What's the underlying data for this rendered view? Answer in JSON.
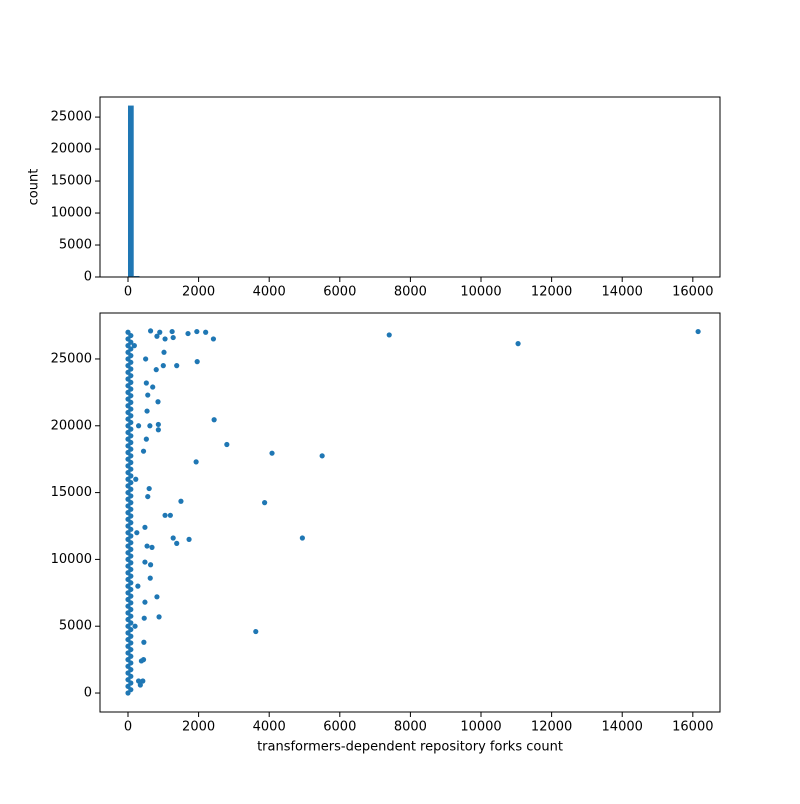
{
  "chart_data": [
    {
      "type": "histogram",
      "y_label": "count",
      "color": "#1f77b4",
      "bins": [
        0,
        162,
        324,
        486,
        648,
        810,
        972,
        1134,
        1296,
        1458,
        1620,
        1782,
        1944,
        2106,
        2268,
        2430,
        2592,
        2754,
        2916,
        3078,
        3240,
        3402,
        3564,
        3726,
        3888,
        4050,
        4212,
        4374,
        4536,
        4698,
        4860,
        5022,
        5184,
        5346,
        5508,
        5670,
        5832,
        5994,
        6156,
        6318,
        6480,
        6642,
        6804,
        6966,
        7128,
        7290,
        7452,
        7614,
        7776,
        7938,
        8100,
        8262,
        8424,
        8586,
        8748,
        8910,
        9072,
        9234,
        9396,
        9558,
        9720,
        9882,
        10044,
        10206,
        10368,
        10530,
        10692,
        10854,
        11016,
        11178,
        11340,
        11502,
        11664,
        11826,
        11988,
        12150,
        12312,
        12474,
        12636,
        12798,
        12960,
        13122,
        13284,
        13446,
        13608,
        13770,
        13932,
        14094,
        14256,
        14418,
        14580,
        14742,
        14904,
        15066,
        15228,
        15390,
        15552,
        15714,
        15876,
        16038,
        16200
      ],
      "counts": [
        26800,
        150,
        60,
        35,
        20,
        14,
        10,
        7,
        5,
        4,
        3,
        3,
        2,
        2,
        2,
        1,
        1,
        1,
        1,
        0,
        0,
        0,
        1,
        1,
        0,
        1,
        0,
        0,
        0,
        0,
        1,
        0,
        0,
        1,
        0,
        0,
        0,
        0,
        0,
        0,
        0,
        0,
        0,
        0,
        0,
        1,
        0,
        0,
        0,
        0,
        0,
        0,
        0,
        0,
        0,
        0,
        0,
        0,
        0,
        0,
        0,
        0,
        0,
        0,
        0,
        0,
        0,
        0,
        1,
        0,
        0,
        0,
        0,
        0,
        0,
        0,
        0,
        0,
        0,
        0,
        0,
        0,
        0,
        0,
        0,
        0,
        0,
        0,
        0,
        0,
        0,
        0,
        0,
        0,
        0,
        0,
        0,
        0,
        0,
        1
      ],
      "xlim": [
        -793,
        16770
      ],
      "xticks": [
        0,
        2000,
        4000,
        6000,
        8000,
        10000,
        12000,
        14000,
        16000
      ],
      "ylim": [
        0,
        28140
      ],
      "yticks": [
        0,
        5000,
        10000,
        15000,
        20000,
        25000
      ]
    },
    {
      "type": "scatter",
      "x_label": "transformers-dependent repository forks count",
      "color": "#1f77b4",
      "x": [
        0,
        80,
        0,
        80,
        0,
        80,
        0,
        80,
        0,
        80,
        0,
        80,
        0,
        80,
        0,
        80,
        0,
        80,
        0,
        80,
        0,
        80,
        0,
        80,
        0,
        80,
        0,
        80,
        0,
        80,
        0,
        80,
        0,
        80,
        0,
        80,
        0,
        80,
        0,
        80,
        0,
        80,
        0,
        80,
        0,
        80,
        0,
        80,
        0,
        80,
        0,
        80,
        0,
        80,
        0,
        80,
        0,
        80,
        0,
        80,
        0,
        80,
        0,
        80,
        0,
        80,
        0,
        80,
        0,
        80,
        0,
        80,
        0,
        80,
        0,
        80,
        0,
        80,
        0,
        80,
        0,
        80,
        0,
        80,
        0,
        80,
        0,
        80,
        0,
        80,
        0,
        80,
        0,
        80,
        0,
        80,
        0,
        80,
        0,
        80,
        0,
        80,
        0,
        80,
        0,
        80,
        0,
        80,
        0,
        16150,
        11050,
        7400,
        5500,
        4940,
        4080,
        3870,
        3620,
        2800,
        2440,
        1930,
        1730,
        1500,
        1380,
        1280,
        1200,
        1050,
        2420,
        2200,
        1950,
        1960,
        1700,
        1380,
        1280,
        1250,
        1050,
        1020,
        1000,
        900,
        820,
        800,
        850,
        860,
        860,
        700,
        640,
        620,
        600,
        630,
        680,
        540,
        560,
        820,
        880,
        640,
        480,
        480,
        460,
        450,
        440,
        420,
        380,
        350,
        300,
        520,
        500,
        480,
        560,
        540,
        520,
        440,
        200,
        250,
        300,
        180,
        280,
        220
      ],
      "y": [
        0,
        250,
        500,
        750,
        1000,
        1250,
        1500,
        1750,
        2000,
        2250,
        2500,
        2750,
        3000,
        3250,
        3500,
        3750,
        4000,
        4250,
        4500,
        4750,
        5000,
        5250,
        5500,
        5750,
        6000,
        6250,
        6500,
        6750,
        7000,
        7250,
        7500,
        7750,
        8000,
        8250,
        8500,
        8750,
        9000,
        9250,
        9500,
        9750,
        10000,
        10250,
        10500,
        10750,
        11000,
        11250,
        11500,
        11750,
        12000,
        12250,
        12500,
        12750,
        13000,
        13250,
        13500,
        13750,
        14000,
        14250,
        14500,
        14750,
        15000,
        15250,
        15500,
        15750,
        16000,
        16250,
        16500,
        16750,
        17000,
        17250,
        17500,
        17750,
        18000,
        18250,
        18500,
        18750,
        19000,
        19250,
        19500,
        19750,
        20000,
        20250,
        20500,
        20750,
        21000,
        21250,
        21500,
        21750,
        22000,
        22250,
        22500,
        22750,
        23000,
        23250,
        23500,
        23750,
        24000,
        24250,
        24500,
        24750,
        25000,
        25250,
        25500,
        25750,
        26000,
        26250,
        26500,
        26750,
        27000,
        27050,
        26150,
        26800,
        17750,
        11600,
        17950,
        14250,
        4600,
        18600,
        20450,
        17300,
        11500,
        14350,
        11200,
        11600,
        13300,
        13300,
        26500,
        27000,
        27050,
        24800,
        26900,
        24500,
        26600,
        27050,
        26500,
        25500,
        24500,
        27000,
        26700,
        24200,
        21800,
        20100,
        19700,
        22900,
        27100,
        20000,
        15300,
        8600,
        10900,
        11000,
        14700,
        7200,
        5700,
        9600,
        12400,
        9800,
        5600,
        3800,
        2500,
        900,
        2400,
        600,
        900,
        23200,
        25000,
        6800,
        22300,
        21100,
        19000,
        18100,
        5000,
        12000,
        20000,
        26000,
        8000,
        16000
      ],
      "xlim": [
        -793,
        16770
      ],
      "xticks": [
        0,
        2000,
        4000,
        6000,
        8000,
        10000,
        12000,
        14000,
        16000
      ],
      "ylim": [
        -1420,
        28440
      ],
      "yticks": [
        0,
        5000,
        10000,
        15000,
        20000,
        25000
      ]
    }
  ]
}
